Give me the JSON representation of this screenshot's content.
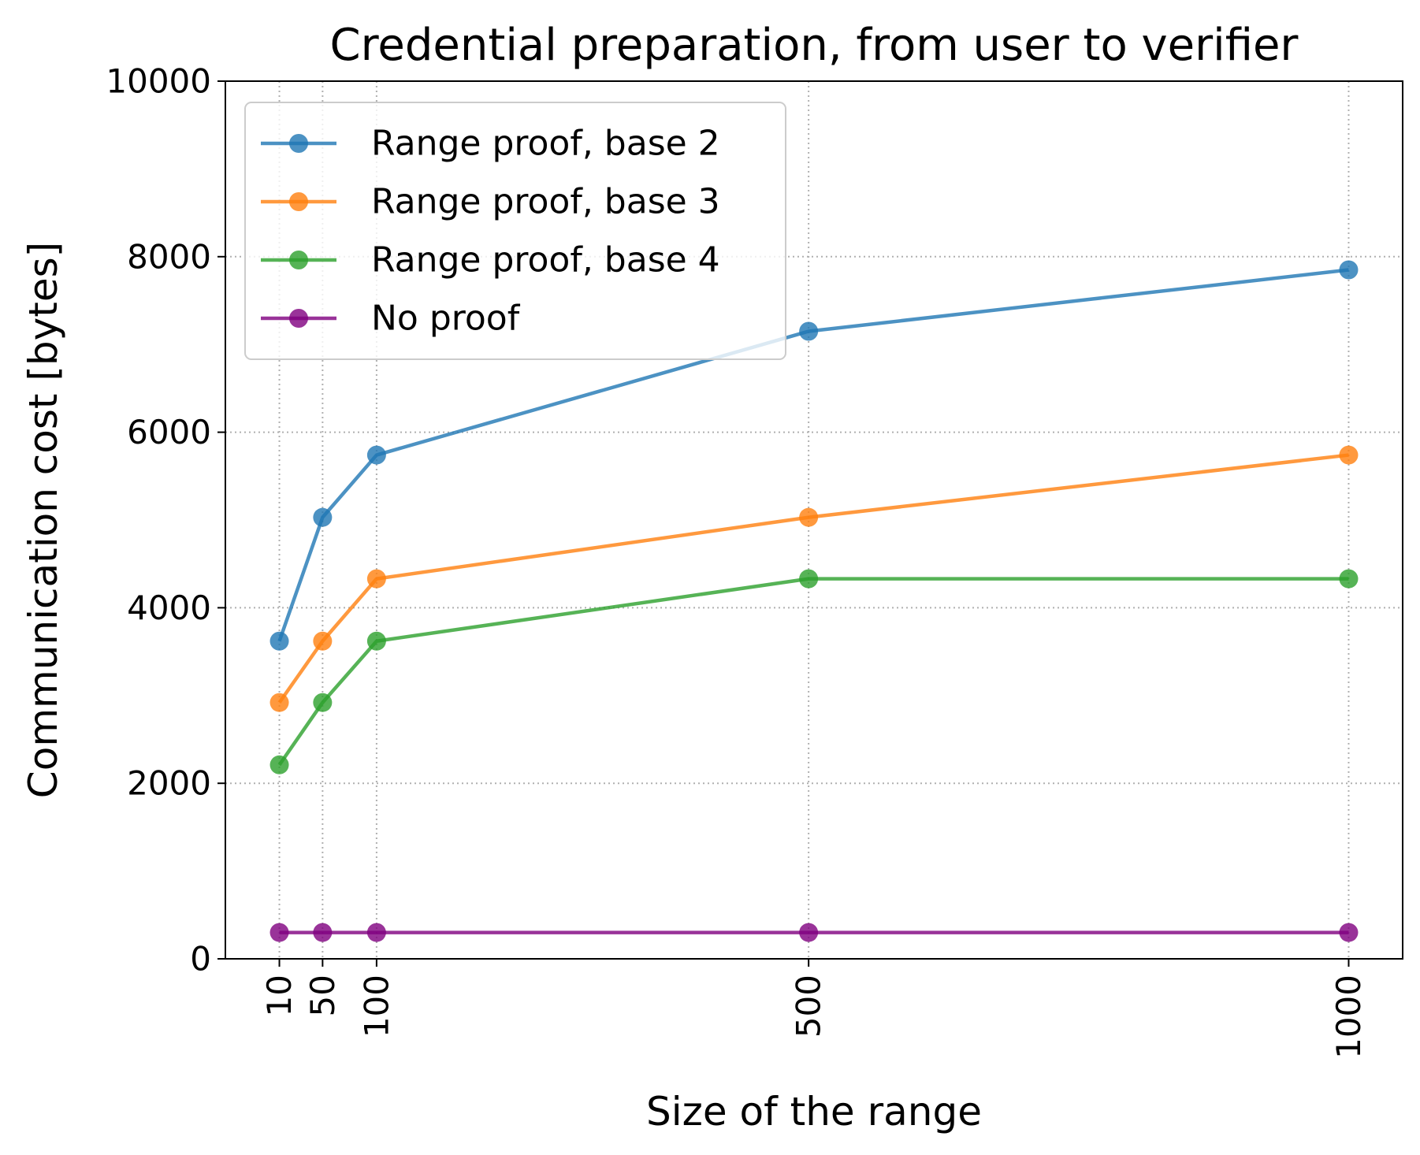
{
  "chart_data": {
    "type": "line",
    "title": "Credential preparation, from user to verifier",
    "xlabel": "Size of the range",
    "ylabel": "Communication cost [bytes]",
    "x": [
      10,
      50,
      100,
      500,
      1000
    ],
    "x_tick_labels": [
      "10",
      "50",
      "100",
      "500",
      "1000"
    ],
    "xlim": [
      -40,
      1050
    ],
    "ylim": [
      0,
      10000
    ],
    "y_ticks": [
      0,
      2000,
      4000,
      6000,
      8000,
      10000
    ],
    "y_tick_labels": [
      "0",
      "2000",
      "4000",
      "6000",
      "8000",
      "10000"
    ],
    "grid": true,
    "legend_position": "top-left",
    "series": [
      {
        "name": "Range proof, base 2",
        "color": "#1f77b4",
        "marker": "circle",
        "values": [
          3620,
          5030,
          5740,
          7150,
          7850
        ]
      },
      {
        "name": "Range proof, base 3",
        "color": "#ff7f0e",
        "marker": "circle",
        "values": [
          2920,
          3620,
          4330,
          5030,
          5740
        ]
      },
      {
        "name": "Range proof, base 4",
        "color": "#2ca02c",
        "marker": "circle",
        "values": [
          2210,
          2920,
          3620,
          4330,
          4330
        ]
      },
      {
        "name": "No proof",
        "color": "#800080",
        "marker": "circle",
        "values": [
          300,
          300,
          300,
          300,
          300
        ]
      }
    ]
  }
}
